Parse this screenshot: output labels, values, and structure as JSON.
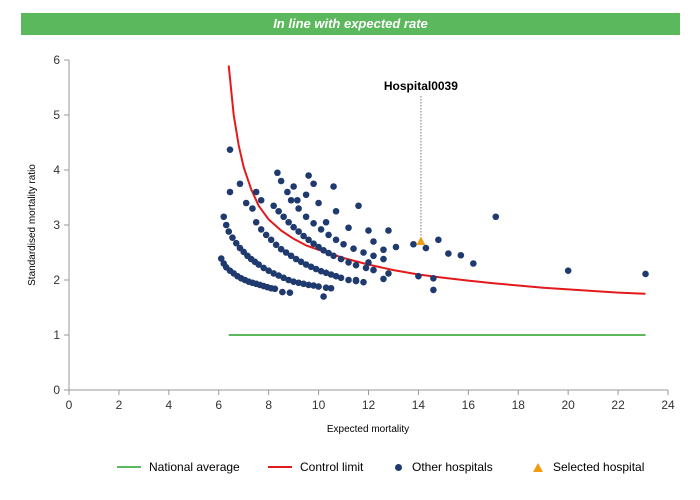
{
  "banner": {
    "text": "In line with expected rate",
    "color": "#5cb85c"
  },
  "legend": {
    "national": "National average",
    "control": "Control limit",
    "others": "Other hospitals",
    "selected": "Selected hospital"
  },
  "colors": {
    "national": "#5cb85c",
    "control": "#e31a1c",
    "others": "#1f3a6e",
    "selected": "#f39c12"
  },
  "chart_data": {
    "type": "scatter",
    "title": "",
    "xlabel": "Expected mortality",
    "ylabel": "Standardised mortality ratio",
    "xlim": [
      0,
      24
    ],
    "ylim": [
      0,
      6
    ],
    "xticks": [
      "0",
      "2",
      "4",
      "6",
      "8",
      "10",
      "12",
      "14",
      "16",
      "18",
      "20",
      "22",
      "24"
    ],
    "yticks": [
      "0",
      "1",
      "2",
      "3",
      "4",
      "5",
      "6"
    ],
    "national_average": {
      "value": 1,
      "x_range": [
        6.4,
        23.1
      ]
    },
    "control_limit": {
      "x": [
        6.4,
        6.6,
        6.8,
        7,
        7.3,
        7.6,
        8,
        8.5,
        9,
        9.5,
        10,
        11,
        12,
        13,
        14,
        15,
        16,
        17,
        18,
        19,
        20,
        21,
        22,
        23.1
      ],
      "y": [
        5.9,
        5.0,
        4.45,
        4.05,
        3.65,
        3.35,
        3.1,
        2.9,
        2.75,
        2.63,
        2.55,
        2.4,
        2.28,
        2.18,
        2.1,
        2.04,
        1.99,
        1.94,
        1.9,
        1.86,
        1.83,
        1.8,
        1.77,
        1.75
      ]
    },
    "selected_hospital": {
      "name": "Hospital0039",
      "x": 14.1,
      "y": 2.7
    },
    "other_hospitals": [
      [
        6.1,
        2.39
      ],
      [
        6.2,
        2.3
      ],
      [
        6.3,
        2.23
      ],
      [
        6.45,
        2.17
      ],
      [
        6.6,
        2.12
      ],
      [
        6.75,
        2.07
      ],
      [
        6.9,
        2.03
      ],
      [
        7.05,
        2.0
      ],
      [
        7.2,
        1.97
      ],
      [
        7.35,
        1.95
      ],
      [
        7.5,
        1.93
      ],
      [
        7.65,
        1.91
      ],
      [
        7.8,
        1.89
      ],
      [
        7.95,
        1.87
      ],
      [
        8.1,
        1.85
      ],
      [
        8.25,
        1.84
      ],
      [
        8.55,
        1.78
      ],
      [
        8.85,
        1.77
      ],
      [
        6.2,
        3.15
      ],
      [
        6.3,
        3.0
      ],
      [
        6.4,
        2.88
      ],
      [
        6.55,
        2.77
      ],
      [
        6.7,
        2.67
      ],
      [
        6.85,
        2.58
      ],
      [
        7.0,
        2.51
      ],
      [
        7.15,
        2.44
      ],
      [
        7.3,
        2.38
      ],
      [
        7.45,
        2.33
      ],
      [
        7.6,
        2.28
      ],
      [
        7.8,
        2.22
      ],
      [
        8.0,
        2.17
      ],
      [
        8.2,
        2.12
      ],
      [
        8.4,
        2.08
      ],
      [
        8.6,
        2.04
      ],
      [
        8.8,
        2.0
      ],
      [
        9.0,
        1.97
      ],
      [
        9.2,
        1.95
      ],
      [
        9.4,
        1.93
      ],
      [
        9.6,
        1.91
      ],
      [
        9.8,
        1.9
      ],
      [
        10.0,
        1.88
      ],
      [
        10.3,
        1.86
      ],
      [
        10.5,
        1.85
      ],
      [
        7.5,
        3.05
      ],
      [
        7.7,
        2.92
      ],
      [
        7.9,
        2.82
      ],
      [
        8.1,
        2.73
      ],
      [
        8.3,
        2.64
      ],
      [
        8.5,
        2.56
      ],
      [
        8.7,
        2.5
      ],
      [
        8.9,
        2.44
      ],
      [
        9.1,
        2.38
      ],
      [
        9.3,
        2.33
      ],
      [
        9.5,
        2.28
      ],
      [
        9.7,
        2.24
      ],
      [
        9.9,
        2.2
      ],
      [
        10.1,
        2.16
      ],
      [
        10.3,
        2.13
      ],
      [
        10.5,
        2.1
      ],
      [
        10.7,
        2.07
      ],
      [
        10.9,
        2.04
      ],
      [
        11.2,
        2.0
      ],
      [
        11.5,
        1.98
      ],
      [
        11.8,
        1.96
      ],
      [
        8.2,
        3.35
      ],
      [
        8.4,
        3.25
      ],
      [
        8.6,
        3.15
      ],
      [
        8.8,
        3.05
      ],
      [
        9.0,
        2.96
      ],
      [
        9.2,
        2.88
      ],
      [
        9.4,
        2.8
      ],
      [
        9.6,
        2.73
      ],
      [
        9.8,
        2.66
      ],
      [
        10.0,
        2.6
      ],
      [
        10.2,
        2.54
      ],
      [
        10.4,
        2.49
      ],
      [
        10.6,
        2.44
      ],
      [
        10.9,
        2.38
      ],
      [
        11.2,
        2.32
      ],
      [
        11.5,
        2.27
      ],
      [
        11.9,
        2.22
      ],
      [
        12.2,
        2.18
      ],
      [
        8.9,
        3.45
      ],
      [
        9.2,
        3.3
      ],
      [
        9.5,
        3.15
      ],
      [
        9.8,
        3.03
      ],
      [
        10.1,
        2.92
      ],
      [
        10.4,
        2.82
      ],
      [
        10.7,
        2.73
      ],
      [
        11.0,
        2.65
      ],
      [
        11.4,
        2.57
      ],
      [
        11.8,
        2.5
      ],
      [
        12.2,
        2.44
      ],
      [
        12.6,
        2.38
      ],
      [
        12.2,
        2.7
      ],
      [
        12.6,
        2.55
      ],
      [
        6.45,
        3.6
      ],
      [
        6.85,
        3.75
      ],
      [
        7.1,
        3.4
      ],
      [
        7.35,
        3.3
      ],
      [
        7.5,
        3.6
      ],
      [
        7.7,
        3.45
      ],
      [
        8.35,
        3.95
      ],
      [
        8.5,
        3.8
      ],
      [
        8.75,
        3.6
      ],
      [
        9.0,
        3.7
      ],
      [
        9.15,
        3.45
      ],
      [
        9.5,
        3.55
      ],
      [
        9.6,
        3.9
      ],
      [
        9.8,
        3.75
      ],
      [
        10.6,
        3.7
      ],
      [
        10.7,
        3.25
      ],
      [
        10.0,
        3.4
      ],
      [
        10.3,
        3.05
      ],
      [
        11.6,
        3.35
      ],
      [
        11.2,
        2.95
      ],
      [
        6.45,
        4.37
      ],
      [
        12.0,
        2.9
      ],
      [
        12.8,
        2.9
      ],
      [
        13.1,
        2.6
      ],
      [
        13.8,
        2.65
      ],
      [
        14.3,
        2.58
      ],
      [
        14.8,
        2.73
      ],
      [
        15.2,
        2.48
      ],
      [
        15.7,
        2.45
      ],
      [
        16.2,
        2.3
      ],
      [
        17.1,
        3.15
      ],
      [
        20.0,
        2.17
      ],
      [
        23.1,
        2.11
      ],
      [
        14.0,
        2.07
      ],
      [
        14.6,
        2.03
      ],
      [
        14.6,
        1.82
      ],
      [
        12.8,
        2.12
      ],
      [
        12.6,
        2.02
      ],
      [
        12.0,
        2.32
      ],
      [
        11.5,
        2.0
      ],
      [
        10.2,
        1.7
      ]
    ]
  }
}
